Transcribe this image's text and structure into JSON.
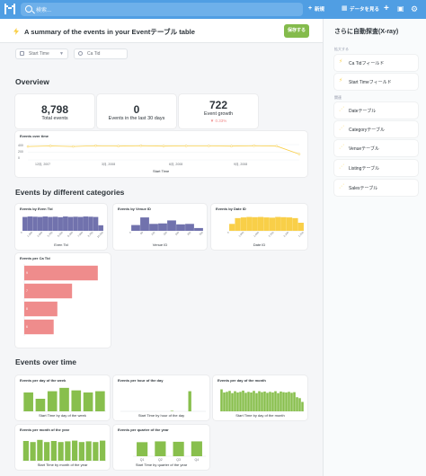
{
  "topbar": {
    "search_placeholder": "検索...",
    "new_label": "新規",
    "create_label": "新規作成",
    "data_label": "データを見る",
    "plus_icon": "plus-icon",
    "brand_color": "#509ee3"
  },
  "header": {
    "title": "A summary of the events in your Eventテーブル table",
    "save_label": "保存する"
  },
  "filters": [
    {
      "label": "Start Time"
    },
    {
      "label": "Ca Tid"
    }
  ],
  "overview": {
    "title": "Overview",
    "total": {
      "value": "8,798",
      "label": "Total events"
    },
    "last30": {
      "value": "0",
      "label": "Events in the last 30 days"
    },
    "growth": {
      "value": "722",
      "label": "Event growth",
      "delta": "▼ 0.33%"
    },
    "time": {
      "title": "Events over time",
      "yticks": [
        "400",
        "200",
        "0"
      ],
      "xticks": [
        "12月, 2007",
        "3月, 2008",
        "6月, 2008",
        "9月, 2008"
      ],
      "xlabel": "Start Time"
    }
  },
  "categories": {
    "title": "Events by different categories",
    "even_tid": {
      "title": "Events by Even Tid",
      "xlabel": "Even Tid",
      "xticks": [
        "0",
        "1,250",
        "2,500",
        "3,750",
        "5,000",
        "6,250",
        "7,500",
        "8,750",
        "10,000"
      ]
    },
    "venue_id": {
      "title": "Events by Venue ID",
      "xlabel": "Venue ID",
      "xticks": [
        "0",
        "50",
        "100",
        "150",
        "200",
        "250",
        "300"
      ]
    },
    "date_id": {
      "title": "Events by Date ID",
      "xlabel": "Date ID",
      "xticks": [
        "0",
        "1,800",
        "1,900",
        "2,000",
        "2,100",
        "2,200"
      ]
    },
    "ca_tid": {
      "title": "Events per Ca Tid",
      "labels": [
        "9",
        "7",
        "8",
        "6"
      ]
    }
  },
  "over_time": {
    "title": "Events over time",
    "dow": {
      "title": "Events per day of the week",
      "xlabel": "Start Time by day of the week"
    },
    "hour": {
      "title": "Events per hour of the day",
      "xlabel": "Start Time by hour of the day"
    },
    "dom": {
      "title": "Events per day of the month",
      "xlabel": "Start Time by day of the month"
    },
    "month": {
      "title": "Events per month of the year",
      "xlabel": "Start Time by month of the year"
    },
    "quarter": {
      "title": "Events per quarter of the year",
      "xlabel": "Start Time by quarter of the year",
      "xticks": [
        "Q1",
        "Q2",
        "Q3",
        "Q4"
      ]
    }
  },
  "sidebar": {
    "title": "さらに自動探査(X-ray)",
    "zoom_head": "拡大する",
    "zoom_items": [
      "Ca Tidフィールド",
      "Start Timeフィールド"
    ],
    "related_head": "関連",
    "related_items": [
      "Dateテーブル",
      "Categoryテーブル",
      "Venueテーブル",
      "Listingテーブル",
      "Salesテーブル"
    ]
  },
  "chart_data": [
    {
      "type": "line",
      "title": "Events over time",
      "x": [
        "12月, 2007",
        "1月, 2008",
        "2月, 2008",
        "3月, 2008",
        "4月, 2008",
        "5月, 2008",
        "6月, 2008",
        "7月, 2008",
        "8月, 2008",
        "9月, 2008",
        "10月, 2008",
        "11月, 2008",
        "12月, 2008"
      ],
      "values": [
        700,
        730,
        700,
        740,
        720,
        740,
        720,
        730,
        730,
        720,
        740,
        720,
        300
      ],
      "ylim": [
        0,
        800
      ],
      "xlabel": "Start Time",
      "color": "#f9cf48"
    },
    {
      "type": "bar",
      "title": "Events by Even Tid",
      "values": [
        60,
        62,
        61,
        60,
        62,
        60,
        61,
        59,
        62,
        60,
        61,
        60,
        62,
        61,
        60,
        24
      ],
      "ylim": [
        0,
        70
      ],
      "xlabel": "Even Tid",
      "color": "#7172ad"
    },
    {
      "type": "bar",
      "title": "Events by Venue ID",
      "values": [
        25,
        58,
        30,
        32,
        45,
        28,
        30,
        12
      ],
      "ylim": [
        0,
        70
      ],
      "xlabel": "Venue ID",
      "color": "#7172ad"
    },
    {
      "type": "bar",
      "title": "Events by Date ID",
      "values": [
        30,
        55,
        58,
        60,
        59,
        60,
        58,
        57,
        60,
        59,
        58,
        55,
        35
      ],
      "ylim": [
        0,
        70
      ],
      "xlabel": "Date ID",
      "color": "#f9cf48"
    },
    {
      "type": "bar",
      "title": "Events per Ca Tid",
      "categories": [
        "9",
        "7",
        "8",
        "6"
      ],
      "values": [
        2000,
        1300,
        900,
        800
      ],
      "xlim": [
        0,
        2200
      ],
      "color": "#ef8c8c"
    },
    {
      "type": "bar",
      "title": "Events per day of the week",
      "values": [
        45,
        30,
        48,
        56,
        50,
        45,
        48
      ],
      "ylim": [
        0,
        60
      ],
      "color": "#88bf4d"
    },
    {
      "type": "bar",
      "title": "Events per hour of the day",
      "values": [
        0,
        0,
        0,
        0,
        0,
        0,
        0,
        0,
        0,
        0,
        0,
        0,
        0,
        0,
        2,
        0,
        0,
        0,
        0,
        80,
        0,
        0,
        0,
        0
      ],
      "ylim": [
        0,
        100
      ],
      "color": "#88bf4d"
    },
    {
      "type": "bar",
      "title": "Events per day of the month",
      "values": [
        70,
        60,
        62,
        65,
        58,
        64,
        60,
        62,
        66,
        59,
        62,
        60,
        65,
        58,
        64,
        61,
        63,
        59,
        62,
        60,
        64,
        58,
        63,
        61,
        60,
        62,
        59,
        61,
        45,
        42,
        30
      ],
      "ylim": [
        0,
        80
      ],
      "color": "#88bf4d"
    },
    {
      "type": "bar",
      "title": "Events per month of the year",
      "values": [
        55,
        52,
        58,
        52,
        55,
        52,
        54,
        56,
        52,
        54,
        52,
        56
      ],
      "ylim": [
        0,
        70
      ],
      "color": "#88bf4d"
    },
    {
      "type": "bar",
      "title": "Events per quarter of the year",
      "categories": [
        "Q1",
        "Q2",
        "Q3",
        "Q4"
      ],
      "values": [
        68,
        72,
        70,
        72
      ],
      "ylim": [
        0,
        100
      ],
      "color": "#88bf4d"
    }
  ]
}
